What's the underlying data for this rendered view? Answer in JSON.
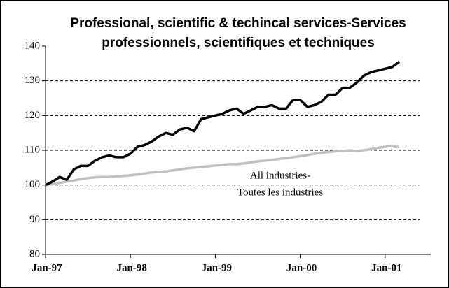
{
  "chart_data": {
    "type": "line",
    "title": [
      "Professional, scientific & techincal services-Services",
      "professionnels, scientifiques et techniques"
    ],
    "annotations": [
      "All industries-",
      "Toutes les industries"
    ],
    "categories": [
      "Jan-97",
      null,
      null,
      null,
      null,
      null,
      null,
      null,
      null,
      null,
      null,
      null,
      "Jan-98",
      null,
      null,
      null,
      null,
      null,
      null,
      null,
      null,
      null,
      null,
      null,
      "Jan-99",
      null,
      null,
      null,
      null,
      null,
      null,
      null,
      null,
      null,
      null,
      null,
      "Jan-00",
      null,
      null,
      null,
      null,
      null,
      null,
      null,
      null,
      null,
      null,
      null,
      "Jan-01",
      null,
      null
    ],
    "series": [
      {
        "color": "#000000",
        "values": [
          100,
          101,
          102.3,
          101.5,
          104.5,
          105.5,
          105.5,
          107,
          108,
          108.5,
          108,
          108,
          109,
          111,
          111.5,
          112.5,
          114,
          115,
          114.5,
          116,
          116.5,
          115.5,
          119,
          119.5,
          120,
          120.5,
          121.5,
          122,
          120.5,
          121.5,
          122.5,
          122.5,
          123,
          122,
          122,
          124.5,
          124.5,
          122.5,
          123,
          124,
          126,
          126,
          128,
          128,
          129.5,
          131.5,
          132.5,
          133,
          133.5,
          134,
          135.5
        ]
      },
      {
        "color": "#c0c0c0",
        "values": [
          100,
          100.3,
          100.6,
          101,
          101.3,
          101.7,
          102,
          102.2,
          102.3,
          102.3,
          102.5,
          102.6,
          102.8,
          103,
          103.3,
          103.6,
          103.8,
          103.9,
          104.2,
          104.5,
          104.8,
          105,
          105.2,
          105.4,
          105.6,
          105.8,
          106,
          106,
          106.2,
          106.5,
          106.8,
          107,
          107.2,
          107.5,
          107.7,
          108,
          108.3,
          108.6,
          109,
          109.3,
          109.5,
          109.7,
          109.8,
          110,
          109.8,
          110,
          110.3,
          110.7,
          111,
          111.2,
          110.9
        ]
      }
    ],
    "ylim": [
      80,
      140
    ],
    "yticks": [
      80,
      90,
      100,
      110,
      120,
      130,
      140
    ],
    "grid": true
  }
}
